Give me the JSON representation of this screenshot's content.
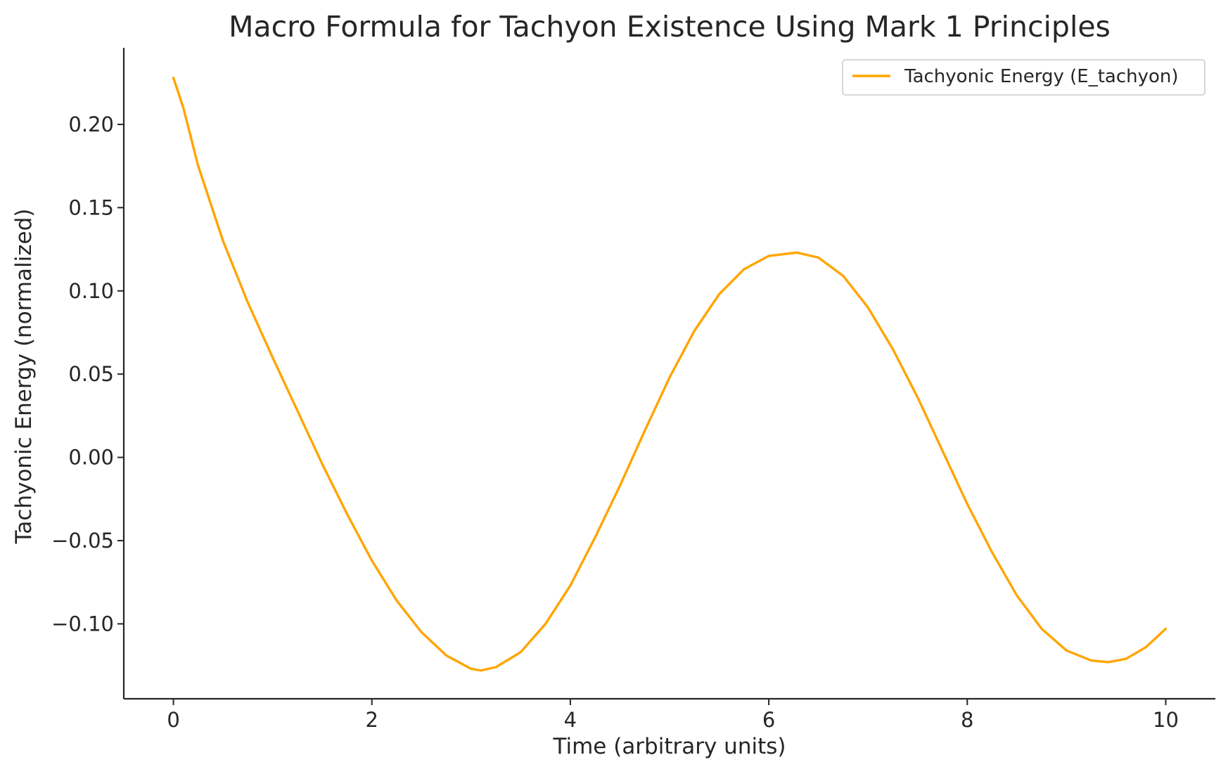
{
  "chart_data": {
    "type": "line",
    "title": "Macro Formula for Tachyon Existence Using Mark 1 Principles",
    "xlabel": "Time (arbitrary units)",
    "ylabel": "Tachyonic Energy (normalized)",
    "xlim": [
      -0.5,
      10.5
    ],
    "ylim": [
      -0.145,
      0.246
    ],
    "x_ticks": [
      0,
      2,
      4,
      6,
      8,
      10
    ],
    "x_tick_labels": [
      "0",
      "2",
      "4",
      "6",
      "8",
      "10"
    ],
    "y_ticks": [
      -0.1,
      -0.05,
      0.0,
      0.05,
      0.1,
      0.15,
      0.2
    ],
    "y_tick_labels": [
      "−0.10",
      "−0.05",
      "0.00",
      "0.05",
      "0.10",
      "0.15",
      "0.20"
    ],
    "grid": false,
    "legend_position": "top-right",
    "series": [
      {
        "name": "Tachyonic Energy (E_tachyon)",
        "color": "#ffa500",
        "x": [
          0,
          0.1,
          0.25,
          0.5,
          0.75,
          1.0,
          1.25,
          1.5,
          1.75,
          2.0,
          2.25,
          2.5,
          2.75,
          3.0,
          3.1,
          3.25,
          3.5,
          3.75,
          4.0,
          4.25,
          4.5,
          4.75,
          5.0,
          5.25,
          5.5,
          5.75,
          6.0,
          6.28,
          6.5,
          6.75,
          7.0,
          7.25,
          7.5,
          7.75,
          8.0,
          8.25,
          8.5,
          8.75,
          9.0,
          9.25,
          9.42,
          9.6,
          9.8,
          10.0
        ],
        "y": [
          0.228,
          0.21,
          0.175,
          0.13,
          0.093,
          0.06,
          0.028,
          -0.004,
          -0.034,
          -0.062,
          -0.086,
          -0.105,
          -0.119,
          -0.127,
          -0.128,
          -0.126,
          -0.117,
          -0.1,
          -0.077,
          -0.048,
          -0.017,
          0.016,
          0.048,
          0.076,
          0.098,
          0.113,
          0.121,
          0.123,
          0.12,
          0.109,
          0.09,
          0.065,
          0.036,
          0.004,
          -0.028,
          -0.057,
          -0.083,
          -0.103,
          -0.116,
          -0.122,
          -0.123,
          -0.121,
          -0.114,
          -0.103
        ]
      }
    ]
  }
}
